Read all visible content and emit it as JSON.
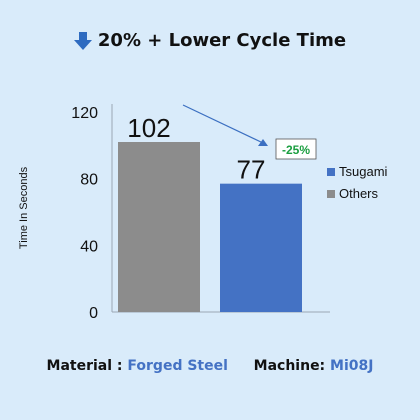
{
  "header": {
    "title": "20% + Lower Cycle Time",
    "icon": "arrow-down-icon",
    "icon_color": "#2e6bc0"
  },
  "chart_data": {
    "type": "bar",
    "categories": [
      "Others",
      "Tsugami"
    ],
    "series": [
      {
        "name": "Others",
        "values": [
          102,
          null
        ],
        "color": "#8c8c8c"
      },
      {
        "name": "Tsugami",
        "values": [
          null,
          77
        ],
        "color": "#4472c4"
      }
    ],
    "data_labels": [
      "102",
      "77"
    ],
    "ylabel": "Time In Seconds",
    "xlabel": "",
    "ylim": [
      0,
      120
    ],
    "yticks": [
      0,
      40,
      80,
      120
    ],
    "ytick_labels": [
      "0",
      "40",
      "80",
      "120"
    ],
    "legend": {
      "position": "right",
      "entries": [
        "Tsugami",
        "Others"
      ]
    },
    "annotation": {
      "text": "-25%",
      "color": "#1a9e3f"
    },
    "grid": false
  },
  "footer": {
    "material_label": "Material :",
    "material_value": "Forged Steel",
    "machine_label": "Machine:",
    "machine_value": "Mi08J"
  }
}
